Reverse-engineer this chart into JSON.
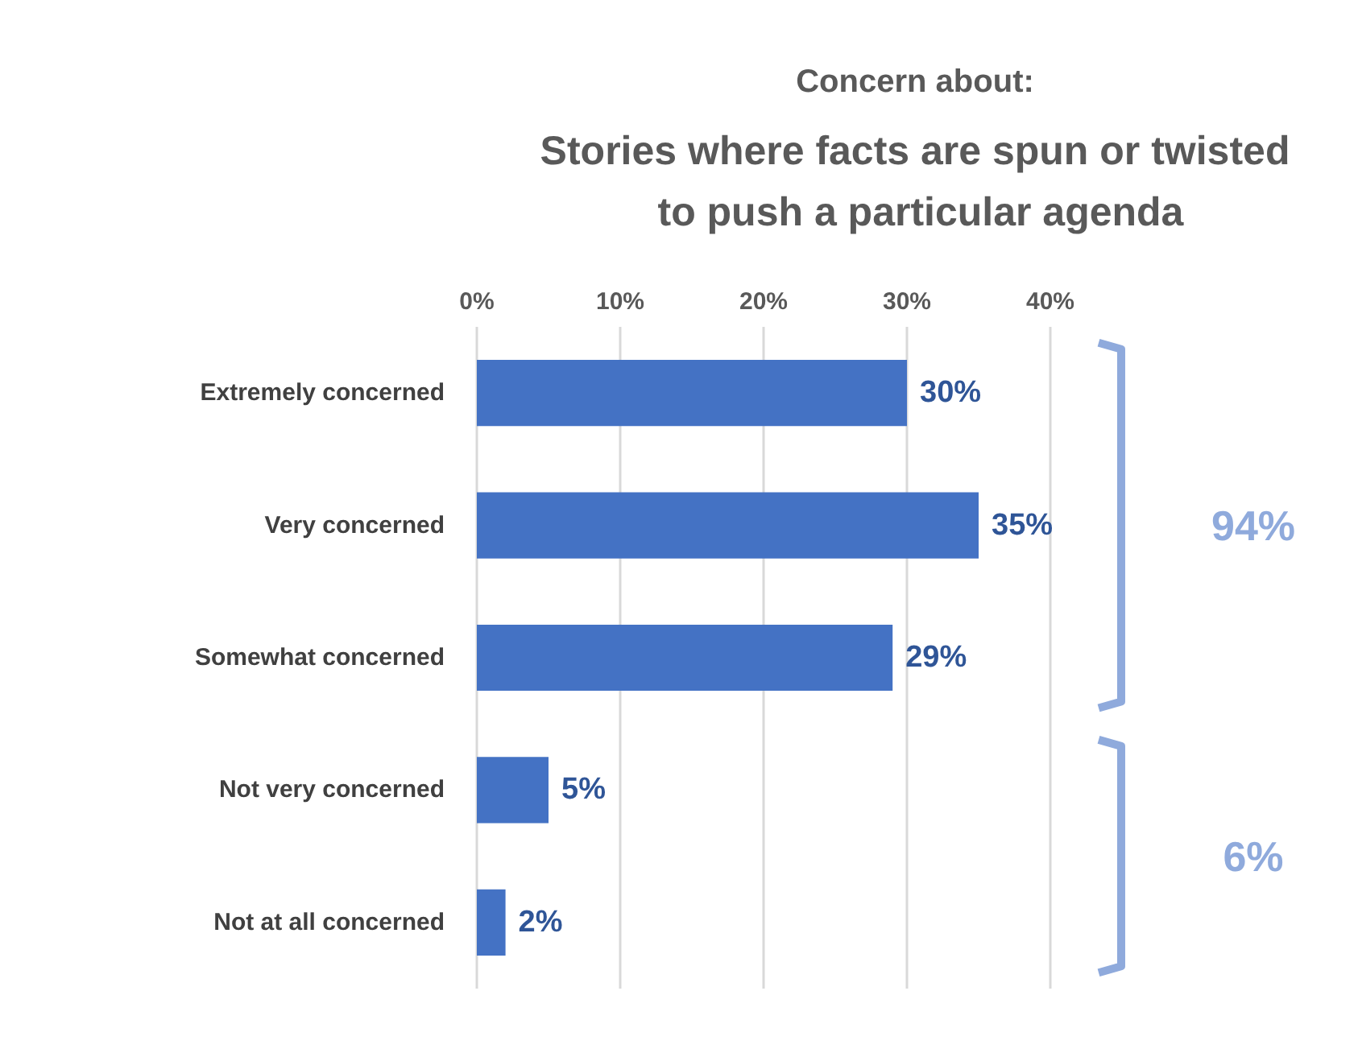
{
  "chart_data": {
    "type": "bar",
    "orientation": "horizontal",
    "subtitle": "Concern about:",
    "title": "Stories where facts are spun or twisted to push a particular agenda",
    "categories": [
      "Extremely concerned",
      "Very concerned",
      "Somewhat concerned",
      "Not very concerned",
      "Not at all concerned"
    ],
    "values": [
      30,
      35,
      29,
      5,
      2
    ],
    "color": "#4472c4",
    "value_labels": [
      "30%",
      "35%",
      "29%",
      "5%",
      "2%"
    ],
    "xlim": [
      0,
      40
    ],
    "xticks": [
      {
        "value": 0,
        "label": "0%"
      },
      {
        "value": 10,
        "label": "10%"
      },
      {
        "value": 20,
        "label": "20%"
      },
      {
        "value": 30,
        "label": "30%"
      },
      {
        "value": 40,
        "label": "40%"
      }
    ],
    "grid": "x",
    "annotations": [
      "94%",
      "6%"
    ]
  }
}
